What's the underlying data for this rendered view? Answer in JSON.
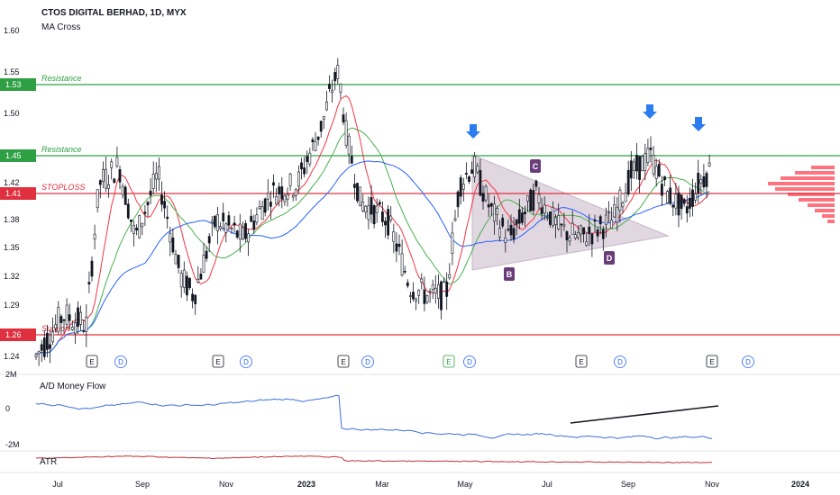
{
  "header": {
    "symbol": "CTOS DIGITAL BERHAD, 1D, MYX",
    "indicator": "MA Cross"
  },
  "panels": {
    "money_flow_label": "A/D Money Flow",
    "atr_label": "ATR"
  },
  "colors": {
    "up_candle": "#131722",
    "down_candle": "#131722",
    "ma_fast": "#f23645",
    "ma_mid": "#4caf50",
    "ma_slow": "#2962ff",
    "resistance": "#2ea043",
    "stoploss": "#e03040",
    "support": "#e03040",
    "pattern_fill": "#c9b6c9",
    "pattern_label": "#6a3d7a",
    "volume_profile": "#ff5a68",
    "money_flow": "#3d6fe0",
    "atr": "#c3303f",
    "arrow": "#2a7cf0"
  },
  "chart_data": {
    "type": "candlestick",
    "title": "CTOS DIGITAL BERHAD, 1D, MYX",
    "price_axis": {
      "ticks": [
        "1.60",
        "1.55",
        "1.50",
        "1.45",
        "1.42",
        "1.38",
        "1.35",
        "1.32",
        "1.29",
        "1.24"
      ],
      "range": [
        1.23,
        1.62
      ]
    },
    "time_axis": {
      "ticks": [
        "Jul",
        "Sep",
        "Nov",
        "2023",
        "Mar",
        "May",
        "Jul",
        "Sep",
        "Nov",
        "2024"
      ]
    },
    "levels": [
      {
        "label": "Resistance",
        "price": 1.53,
        "tag": "1.53",
        "color": "#2ea043"
      },
      {
        "label": "Resistance",
        "price": 1.45,
        "tag": "1.45",
        "color": "#2ea043"
      },
      {
        "label": "STOPLOSS",
        "price": 1.41,
        "tag": "1.41",
        "color": "#e03040"
      },
      {
        "label": "Support",
        "price": 1.26,
        "tag": "1.26",
        "color": "#e03040"
      }
    ],
    "pattern_points": [
      "B",
      "C",
      "D"
    ],
    "events": [
      "E",
      "D",
      "E",
      "D",
      "E",
      "D",
      "E",
      "D",
      "E",
      "D",
      "E",
      "D"
    ],
    "money_flow": {
      "ticks": [
        "2M",
        "0",
        "-2M"
      ]
    },
    "atr": {
      "ticks": []
    }
  }
}
